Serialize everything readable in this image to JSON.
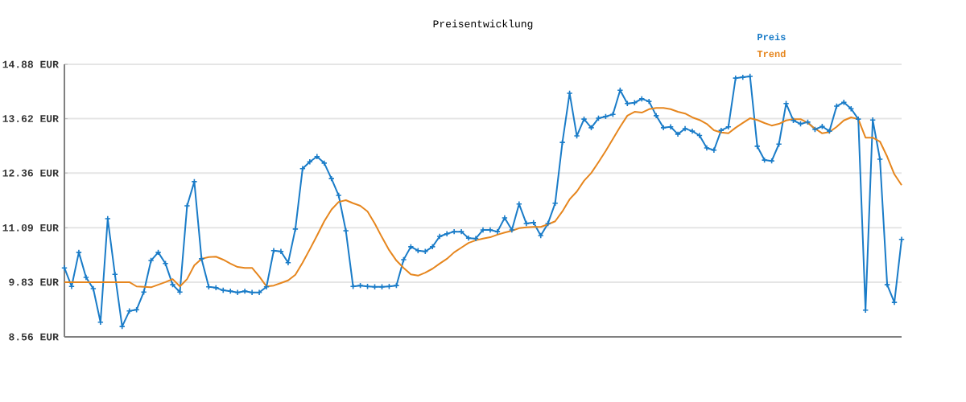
{
  "chart_data": {
    "type": "line",
    "title": "Preisentwicklung",
    "categories": [
      null,
      null,
      null,
      null,
      null,
      null,
      null,
      null,
      null,
      null,
      null,
      null,
      null,
      null,
      null,
      null,
      null,
      null,
      null,
      null,
      null,
      null,
      null,
      null,
      null,
      null,
      null,
      null,
      null,
      null,
      null,
      null,
      null,
      null,
      null,
      null,
      null,
      null,
      null,
      null,
      null,
      null,
      null,
      null,
      null,
      null,
      null,
      null,
      null,
      null,
      null,
      null,
      null,
      null,
      null,
      null,
      null,
      null,
      null,
      null,
      null,
      null,
      null,
      null,
      null,
      null,
      null,
      null,
      null,
      null,
      null,
      null,
      null,
      null,
      null,
      null,
      null,
      null,
      null,
      null,
      null,
      null,
      null,
      null,
      null,
      null,
      null,
      null,
      null,
      null,
      null,
      null,
      null,
      null,
      null,
      null,
      null,
      null,
      null,
      null,
      null,
      null,
      null,
      null,
      null,
      null,
      null,
      null,
      null,
      null,
      null,
      null,
      null,
      null,
      null,
      null,
      null
    ],
    "series": [
      {
        "name": "Preis",
        "color": "#1a7cc8",
        "marker": "cross",
        "values": [
          10.16,
          9.73,
          10.52,
          9.94,
          9.68,
          8.9,
          11.3,
          10.01,
          8.8,
          9.16,
          9.19,
          9.6,
          10.33,
          10.52,
          10.26,
          9.77,
          9.6,
          11.6,
          12.16,
          10.37,
          9.72,
          9.7,
          9.64,
          9.62,
          9.59,
          9.62,
          9.59,
          9.59,
          9.72,
          10.56,
          10.54,
          10.28,
          11.06,
          12.46,
          12.62,
          12.74,
          12.59,
          12.23,
          11.84,
          11.02,
          9.73,
          9.75,
          9.73,
          9.72,
          9.72,
          9.73,
          9.75,
          10.35,
          10.65,
          10.56,
          10.54,
          10.65,
          10.89,
          10.95,
          11.0,
          11.0,
          10.85,
          10.84,
          11.04,
          11.04,
          11.0,
          11.32,
          11.04,
          11.64,
          11.19,
          11.21,
          10.91,
          11.19,
          11.66,
          13.07,
          14.21,
          13.22,
          13.61,
          13.41,
          13.63,
          13.67,
          13.72,
          14.28,
          13.97,
          13.99,
          14.08,
          14.02,
          13.69,
          13.41,
          13.43,
          13.26,
          13.39,
          13.33,
          13.23,
          12.94,
          12.89,
          13.35,
          13.43,
          14.56,
          14.58,
          14.6,
          12.98,
          12.66,
          12.64,
          13.03,
          13.97,
          13.58,
          13.5,
          13.54,
          13.37,
          13.44,
          13.33,
          13.91,
          14.0,
          13.85,
          13.61,
          9.18,
          13.59,
          12.68,
          9.77,
          9.36,
          10.82
        ]
      },
      {
        "name": "Trend",
        "color": "#e6861e",
        "marker": "none",
        "values": [
          9.83,
          9.83,
          9.83,
          9.83,
          9.83,
          9.83,
          9.83,
          9.83,
          9.83,
          9.83,
          9.73,
          9.72,
          9.71,
          9.77,
          9.83,
          9.9,
          9.73,
          9.9,
          10.22,
          10.37,
          10.41,
          10.42,
          10.35,
          10.26,
          10.18,
          10.16,
          10.16,
          9.96,
          9.73,
          9.75,
          9.81,
          9.87,
          10.0,
          10.28,
          10.59,
          10.91,
          11.24,
          11.51,
          11.69,
          11.73,
          11.66,
          11.6,
          11.47,
          11.19,
          10.87,
          10.57,
          10.33,
          10.16,
          10.01,
          9.98,
          10.05,
          10.14,
          10.26,
          10.37,
          10.52,
          10.63,
          10.74,
          10.8,
          10.84,
          10.87,
          10.93,
          10.98,
          11.02,
          11.08,
          11.1,
          11.11,
          11.11,
          11.17,
          11.24,
          11.47,
          11.75,
          11.93,
          12.18,
          12.36,
          12.61,
          12.87,
          13.15,
          13.43,
          13.69,
          13.78,
          13.76,
          13.84,
          13.87,
          13.87,
          13.84,
          13.78,
          13.74,
          13.65,
          13.59,
          13.5,
          13.35,
          13.3,
          13.28,
          13.41,
          13.52,
          13.63,
          13.59,
          13.52,
          13.46,
          13.5,
          13.58,
          13.61,
          13.61,
          13.52,
          13.39,
          13.28,
          13.31,
          13.43,
          13.58,
          13.65,
          13.61,
          13.18,
          13.18,
          13.09,
          12.74,
          12.33,
          12.08
        ]
      }
    ],
    "ylim": [
      8.56,
      14.88
    ],
    "yticks": [
      {
        "value": 8.56,
        "label": "8.56 EUR"
      },
      {
        "value": 9.83,
        "label": "9.83 EUR"
      },
      {
        "value": 11.09,
        "label": "11.09 EUR"
      },
      {
        "value": 12.36,
        "label": "12.36 EUR"
      },
      {
        "value": 13.62,
        "label": "13.62 EUR"
      },
      {
        "value": 14.88,
        "label": "14.88 EUR"
      }
    ],
    "grid": "y",
    "tick_labels": "y"
  }
}
